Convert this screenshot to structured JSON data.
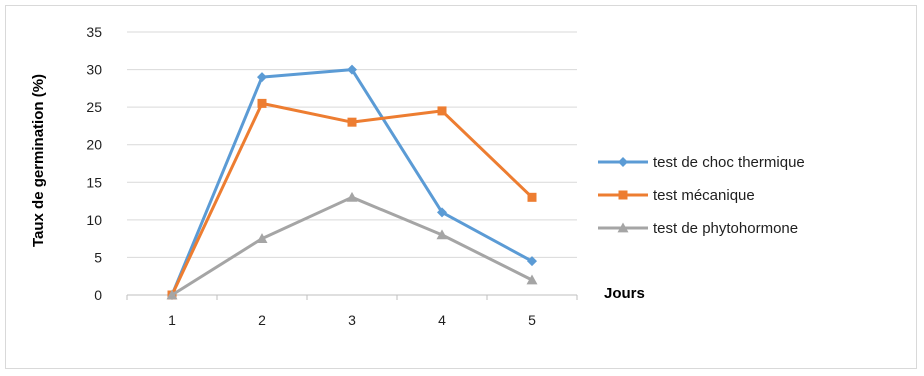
{
  "chart_data": {
    "type": "line",
    "title": "",
    "xlabel": "Jours",
    "ylabel": "Taux de germination (%)",
    "categories": [
      "1",
      "2",
      "3",
      "4",
      "5"
    ],
    "ylim": [
      0,
      35
    ],
    "yticks": [
      "0",
      "5",
      "10",
      "15",
      "20",
      "25",
      "30",
      "35"
    ],
    "grid": "horizontal",
    "legend_position": "right",
    "series": [
      {
        "name": "test de choc thermique",
        "values": [
          0,
          29,
          30,
          11,
          4.5
        ],
        "color": "#5b9bd5",
        "marker": "diamond"
      },
      {
        "name": "test mécanique",
        "values": [
          0,
          25.5,
          23,
          24.5,
          13
        ],
        "color": "#ed7d31",
        "marker": "square"
      },
      {
        "name": "test de phytohormone",
        "values": [
          0,
          7.5,
          13,
          8,
          2
        ],
        "color": "#a5a5a5",
        "marker": "triangle"
      }
    ]
  }
}
